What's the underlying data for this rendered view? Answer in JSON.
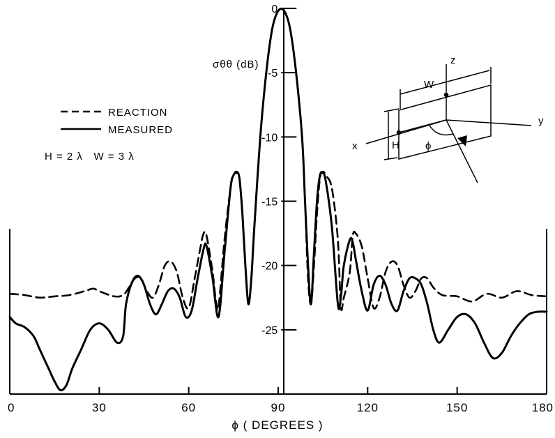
{
  "chart_data": {
    "type": "line",
    "title": "",
    "xlabel": "ϕ ( DEGREES )",
    "ylabel": "σθθ (dB)",
    "xlim": [
      0,
      180
    ],
    "ylim": [
      -30,
      0
    ],
    "xticks": [
      0,
      30,
      60,
      90,
      120,
      150,
      180
    ],
    "xtick_labels": [
      "0",
      "30",
      "60",
      "90",
      "120",
      "150",
      "180"
    ],
    "yticks": [
      0,
      -5,
      -10,
      -15,
      -20,
      -25
    ],
    "ytick_labels": [
      "0",
      "-5",
      "-10",
      "-15",
      "-20",
      "-25"
    ],
    "grid": false,
    "legend_position": "upper-left",
    "parameters_label": "H = 2 λ   W = 3 λ",
    "series": [
      {
        "name": "REACTION",
        "style": "dashed",
        "color": "#000000",
        "x": [
          0,
          5,
          10,
          15,
          20,
          25,
          28,
          30,
          35,
          38,
          40,
          42,
          44,
          46,
          48,
          50,
          52,
          54,
          56,
          58,
          60,
          62,
          64,
          65,
          66,
          68,
          69,
          70,
          72,
          74,
          75,
          76,
          77,
          78,
          79,
          80,
          81,
          82,
          84,
          86,
          88,
          90,
          92,
          94,
          96,
          98,
          99,
          100,
          101,
          102,
          103,
          104,
          105,
          106,
          108,
          110,
          111,
          112,
          114,
          115,
          116,
          118,
          120,
          122,
          124,
          126,
          128,
          130,
          132,
          134,
          136,
          138,
          140,
          142,
          145,
          150,
          155,
          160,
          165,
          170,
          175,
          180
        ],
        "y": [
          -22.2,
          -22.3,
          -22.5,
          -22.4,
          -22.3,
          -22.0,
          -21.8,
          -22.0,
          -22.4,
          -22.3,
          -21.7,
          -21.0,
          -21.0,
          -22.0,
          -22.5,
          -21.5,
          -20.0,
          -19.7,
          -20.5,
          -22.5,
          -23.3,
          -21.0,
          -18.5,
          -17.5,
          -17.7,
          -20.5,
          -22.5,
          -23.2,
          -18.0,
          -14.0,
          -13.0,
          -12.7,
          -13.2,
          -16.0,
          -20.0,
          -22.8,
          -21.0,
          -17.0,
          -10.0,
          -5.0,
          -1.6,
          -0.2,
          -0.2,
          -1.6,
          -5.0,
          -10.0,
          -15.0,
          -21.0,
          -23.0,
          -20.0,
          -16.0,
          -13.2,
          -12.7,
          -13.0,
          -14.0,
          -18.0,
          -23.2,
          -22.5,
          -20.5,
          -17.7,
          -17.5,
          -18.5,
          -21.0,
          -23.3,
          -22.5,
          -20.5,
          -19.7,
          -20.0,
          -21.5,
          -22.5,
          -22.0,
          -21.0,
          -21.0,
          -21.7,
          -22.3,
          -22.4,
          -22.8,
          -22.2,
          -22.5,
          -22.0,
          -22.3,
          -22.4
        ]
      },
      {
        "name": "MEASURED",
        "style": "solid",
        "color": "#000000",
        "x": [
          0,
          2,
          5,
          8,
          10,
          13,
          15,
          17,
          19,
          21,
          24,
          27,
          30,
          33,
          36,
          38,
          39,
          41,
          43,
          45,
          47,
          49,
          51,
          53,
          55,
          57,
          59,
          61,
          63,
          65,
          66,
          68,
          70,
          72,
          74,
          75,
          76,
          77,
          78,
          79,
          80,
          81,
          82,
          84,
          86,
          88,
          90,
          92,
          94,
          96,
          98,
          99,
          100,
          101,
          102,
          103,
          104,
          105,
          106,
          108,
          110,
          111,
          112,
          114,
          115,
          116,
          118,
          120,
          122,
          124,
          126,
          128,
          130,
          132,
          134,
          136,
          138,
          140,
          142,
          144,
          147,
          150,
          153,
          156,
          159,
          162,
          165,
          168,
          171,
          174,
          177,
          180
        ],
        "y": [
          -24.0,
          -24.5,
          -24.8,
          -25.5,
          -26.5,
          -28.0,
          -29.0,
          -29.7,
          -29.3,
          -28.0,
          -26.5,
          -25.0,
          -24.5,
          -25.0,
          -26.0,
          -25.5,
          -23.0,
          -21.3,
          -20.8,
          -21.5,
          -23.0,
          -23.8,
          -23.0,
          -22.0,
          -21.8,
          -22.5,
          -24.0,
          -23.5,
          -21.0,
          -18.7,
          -18.5,
          -21.0,
          -24.0,
          -19.0,
          -14.0,
          -13.0,
          -12.8,
          -13.2,
          -16.0,
          -20.0,
          -23.0,
          -21.0,
          -17.0,
          -10.0,
          -5.0,
          -1.6,
          -0.2,
          -0.2,
          -1.6,
          -5.0,
          -10.0,
          -15.0,
          -20.0,
          -23.0,
          -19.0,
          -15.0,
          -13.0,
          -12.8,
          -13.5,
          -17.0,
          -23.0,
          -22.5,
          -20.0,
          -18.0,
          -18.2,
          -19.5,
          -22.0,
          -23.5,
          -21.5,
          -20.8,
          -21.5,
          -23.0,
          -23.5,
          -22.0,
          -21.0,
          -21.0,
          -21.5,
          -23.0,
          -25.0,
          -26.0,
          -25.0,
          -24.0,
          -23.8,
          -24.5,
          -26.0,
          -27.2,
          -26.8,
          -25.5,
          -24.5,
          -23.8,
          -23.6,
          -23.6
        ]
      }
    ],
    "inset_labels": {
      "z": "z",
      "y": "y",
      "x": "x",
      "w": "W",
      "h": "H",
      "phi": "ϕ"
    }
  }
}
